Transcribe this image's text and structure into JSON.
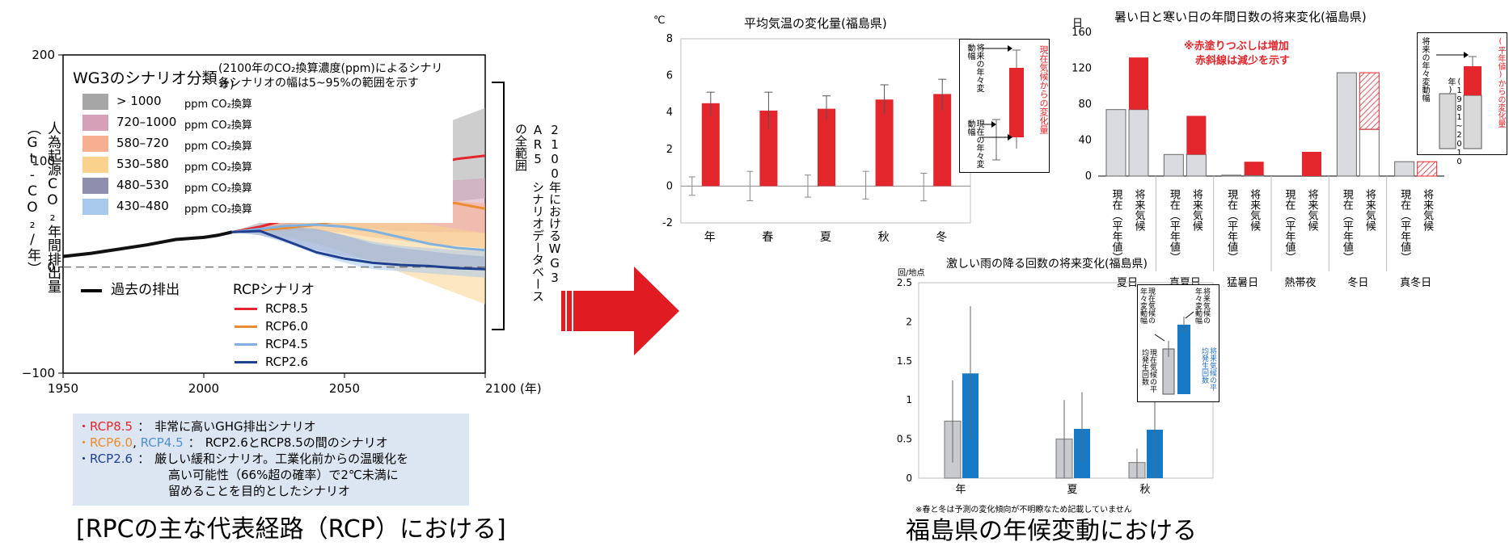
{
  "left": {
    "yaxis_label": "人為起源CO₂年間排出量（Gt-CO₂/年）",
    "right_bracket_label": "2100年におけるWG3 AR5 シナリオデータベースの全範囲",
    "scenario_legend_title": "WG3のシナリオ分類",
    "scenario_note_1": "(2100年のCO₂換算濃度(ppm)によるシナリオ)",
    "scenario_note_2": "各シナリオの幅は5~95%の範囲を示す",
    "scenario_unit": "ppm CO₂換算",
    "scenario_bands": [
      {
        "label": "> 1000",
        "color": "#a6a6a6"
      },
      {
        "label": "720–1000",
        "color": "#d6a0b8"
      },
      {
        "label": "580–720",
        "color": "#f6b08f"
      },
      {
        "label": "530–580",
        "color": "#f9d38d"
      },
      {
        "label": "480–530",
        "color": "#8e8eaf"
      },
      {
        "label": "430–480",
        "color": "#a8c8ec"
      }
    ],
    "past_label": "過去の排出",
    "rcp_title": "RCPシナリオ",
    "rcp_lines": [
      {
        "label": "RCP8.5",
        "color": "#e3262b"
      },
      {
        "label": "RCP6.0",
        "color": "#ee8a2f"
      },
      {
        "label": "RCP4.5",
        "color": "#7fb2e0"
      },
      {
        "label": "RCP2.6",
        "color": "#1f3f8f"
      }
    ],
    "x_ticks": [
      "1950",
      "2000",
      "2050",
      "2100 (年)"
    ],
    "y_ticks": [
      "200",
      "100",
      "0",
      "−100"
    ],
    "notes": [
      {
        "key": "・RCP8.5",
        "key2": "",
        "sep": "：",
        "text": "非常に高いGHG排出シナリオ"
      },
      {
        "key": "・RCP6.0",
        "key2": "RCP4.5",
        "sep": "：",
        "text": "RCP2.6とRCP8.5の間のシナリオ"
      },
      {
        "key": "・RCP2.6",
        "key2": "",
        "sep": "：",
        "text": "厳しい緩和シナリオ。工業化前からの温暖化を"
      },
      {
        "key": "",
        "key2": "",
        "sep": "",
        "text": "高い可能性（66%超の確率）で2℃未満に"
      },
      {
        "key": "",
        "key2": "",
        "sep": "",
        "text": "留めることを目的としたシナリオ"
      }
    ],
    "bottom_caption": "[RPCの主な代表経路（RCP）における]"
  },
  "temp": {
    "title": "平均気温の変化量(福島県)",
    "unit": "℃",
    "legend_top": "将来の年々変動幅",
    "legend_bottom": "現在の年々変動幅",
    "legend_red": "現在気候からの変化量"
  },
  "days": {
    "title": "暑い日と寒い日の年間日数の将来変化(福島県)",
    "unit": "日",
    "annot_1": "※赤塗りつぶしは増加",
    "annot_2": "赤斜線は減少を示す",
    "xlabels": [
      "現在（平年値）",
      "将来気候"
    ],
    "legend_left": "将来の年々変動幅",
    "legend_mid": "平年値(1981~2010年)",
    "legend_red": "(平年値)からの変化量"
  },
  "rain": {
    "title": "激しい雨の降る回数の将来変化(福島県)",
    "unit": "回/地点",
    "footnote": "※春と冬は予測の変化傾向が不明瞭なため記載していません",
    "legend_1": "現在気候の年々変動幅",
    "legend_2": "将来気候の年々変動幅",
    "legend_3": "現在気候の平均発生回数",
    "legend_4": "将来気候の平均発生回数"
  },
  "bottom_right_caption": "福島県の年候変動における",
  "chart_data": [
    {
      "type": "line",
      "title": "",
      "xlabel": "",
      "ylabel": "人為起源CO₂年間排出量（Gt-CO₂/年）",
      "xlim": [
        1950,
        2100
      ],
      "ylim": [
        -100,
        200
      ],
      "series": [
        {
          "name": "過去の排出",
          "x": [
            1950,
            1960,
            1970,
            1980,
            1990,
            2000,
            2005,
            2010
          ],
          "y": [
            10,
            13,
            17,
            21,
            26,
            28,
            30,
            33
          ]
        },
        {
          "name": "RCP8.5",
          "x": [
            2010,
            2020,
            2030,
            2040,
            2050,
            2060,
            2070,
            2080,
            2090,
            2100
          ],
          "y": [
            33,
            38,
            45,
            55,
            65,
            76,
            87,
            96,
            102,
            105
          ]
        },
        {
          "name": "RCP6.0",
          "x": [
            2010,
            2020,
            2030,
            2040,
            2050,
            2060,
            2070,
            2080,
            2090,
            2100
          ],
          "y": [
            33,
            35,
            37,
            40,
            45,
            53,
            60,
            63,
            60,
            55
          ]
        },
        {
          "name": "RCP4.5",
          "x": [
            2010,
            2020,
            2030,
            2040,
            2050,
            2060,
            2070,
            2080,
            2090,
            2100
          ],
          "y": [
            33,
            36,
            39,
            40,
            38,
            34,
            28,
            22,
            18,
            16
          ]
        },
        {
          "name": "RCP2.6",
          "x": [
            2010,
            2020,
            2030,
            2040,
            2050,
            2060,
            2070,
            2080,
            2090,
            2100
          ],
          "y": [
            33,
            34,
            24,
            14,
            8,
            4,
            2,
            1,
            -1,
            -2
          ]
        }
      ]
    },
    {
      "type": "bar",
      "title": "平均気温の変化量(福島県)",
      "ylabel": "℃",
      "categories": [
        "年",
        "春",
        "夏",
        "秋",
        "冬"
      ],
      "ylim": [
        -2,
        8
      ],
      "series": [
        {
          "name": "現在気候からの変化量",
          "values": [
            4.5,
            4.1,
            4.2,
            4.7,
            5.0
          ],
          "err_low": [
            3.8,
            3.1,
            3.6,
            3.9,
            4.1
          ],
          "err_high": [
            5.1,
            5.1,
            4.9,
            5.5,
            5.8
          ]
        }
      ],
      "current_range": {
        "low": [
          -0.5,
          -0.8,
          -0.6,
          -0.7,
          -0.8
        ],
        "high": [
          0.5,
          0.8,
          0.6,
          0.8,
          0.7
        ]
      }
    },
    {
      "type": "bar",
      "title": "暑い日と寒い日の年間日数の将来変化(福島県)",
      "ylabel": "日",
      "categories": [
        "夏日",
        "真夏日",
        "猛暑日",
        "熱帯夜",
        "冬日",
        "真冬日"
      ],
      "ylim": [
        0,
        160
      ],
      "series": [
        {
          "name": "現在（平年値）",
          "values": [
            74,
            24,
            1,
            0,
            115,
            16
          ]
        },
        {
          "name": "将来気候",
          "values": [
            132,
            67,
            16,
            27,
            52,
            0
          ]
        }
      ]
    },
    {
      "type": "bar",
      "title": "激しい雨の降る回数の将来変化(福島県)",
      "ylabel": "回/地点",
      "categories": [
        "年",
        "夏",
        "秋"
      ],
      "ylim": [
        0,
        2.5
      ],
      "series": [
        {
          "name": "現在気候の平均発生回数",
          "values": [
            0.73,
            0.5,
            0.2
          ],
          "err_high": [
            1.25,
            1.0,
            0.38
          ],
          "err_low": [
            0.2,
            0.0,
            0.0
          ]
        },
        {
          "name": "将来気候の平均発生回数",
          "values": [
            1.34,
            0.63,
            0.62
          ],
          "err_high": [
            2.2,
            1.1,
            1.33
          ],
          "err_low": [
            0.5,
            0.2,
            0.0
          ]
        }
      ]
    }
  ]
}
